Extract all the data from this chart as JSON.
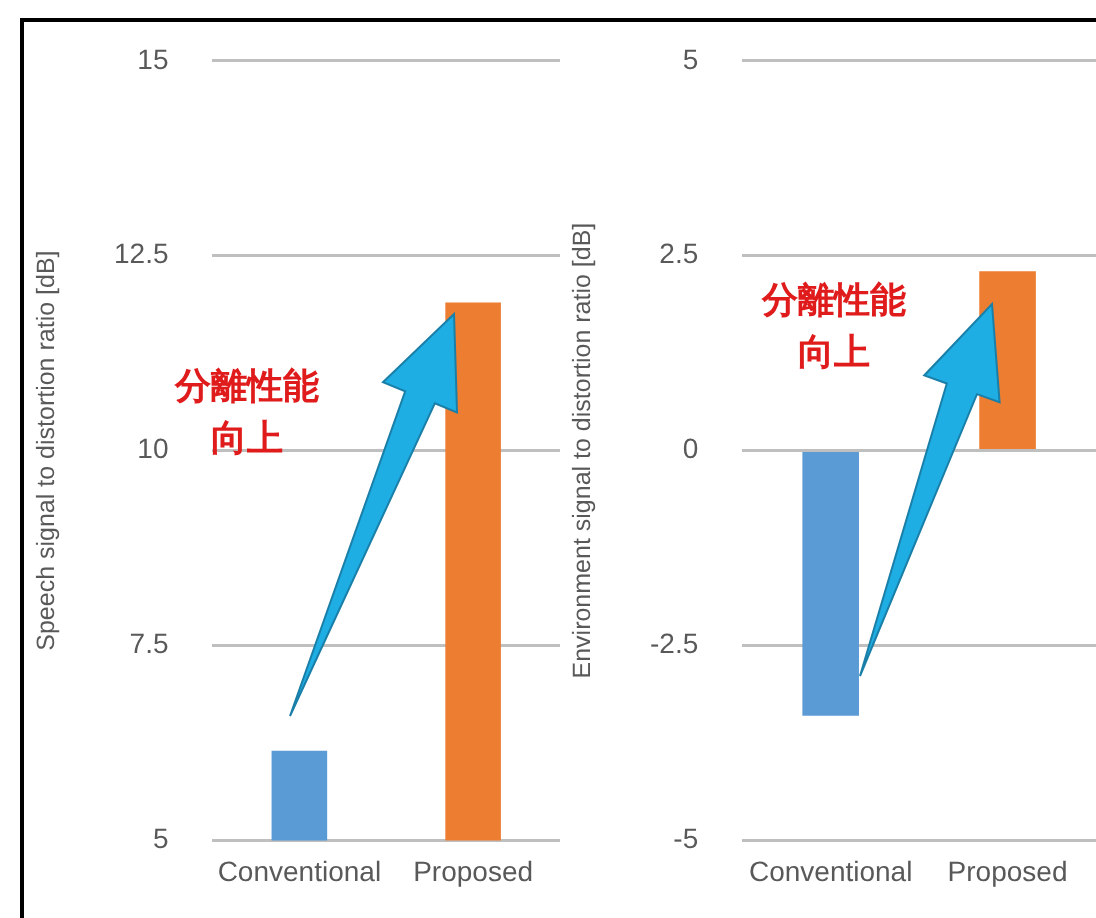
{
  "chart_data": [
    {
      "type": "bar",
      "ylabel": "Speech signal to distortion ratio [dB]",
      "categories": [
        "Conventional",
        "Proposed"
      ],
      "values": [
        6.15,
        11.9
      ],
      "colors": [
        "#5b9bd5",
        "#ed7d31"
      ],
      "ylim": [
        5,
        15
      ],
      "yticks": [
        5,
        7.5,
        10,
        12.5,
        15
      ],
      "grid": "y",
      "legend": false,
      "annotations": [
        "分離性能向上"
      ]
    },
    {
      "type": "bar",
      "ylabel": "Environment signal to distortion ratio [dB]",
      "categories": [
        "Conventional",
        "Proposed"
      ],
      "values": [
        -3.4,
        2.3
      ],
      "colors": [
        "#5b9bd5",
        "#ed7d31"
      ],
      "ylim": [
        -5,
        5
      ],
      "yticks": [
        -5,
        -2.5,
        0,
        2.5,
        5
      ],
      "grid": "y",
      "legend": false,
      "annotations": [
        "分離性能向上"
      ]
    }
  ]
}
